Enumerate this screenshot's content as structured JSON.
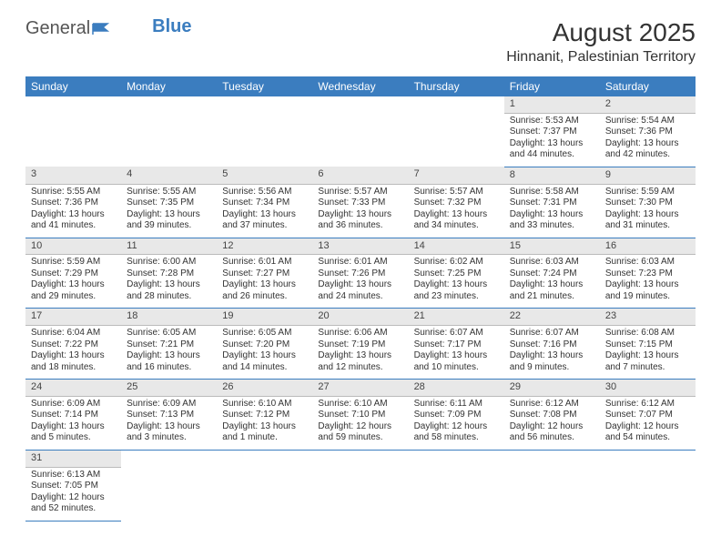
{
  "brand": {
    "part1": "General",
    "part2": "Blue"
  },
  "title": "August 2025",
  "location": "Hinnanit, Palestinian Territory",
  "colors": {
    "header_bg": "#3b7dbf",
    "header_text": "#ffffff",
    "daynum_bg": "#e8e8e8",
    "rule": "#3b7dbf",
    "text": "#333333"
  },
  "weekdays": [
    "Sunday",
    "Monday",
    "Tuesday",
    "Wednesday",
    "Thursday",
    "Friday",
    "Saturday"
  ],
  "weeks": [
    [
      null,
      null,
      null,
      null,
      null,
      {
        "n": "1",
        "sr": "Sunrise: 5:53 AM",
        "ss": "Sunset: 7:37 PM",
        "dl": "Daylight: 13 hours and 44 minutes."
      },
      {
        "n": "2",
        "sr": "Sunrise: 5:54 AM",
        "ss": "Sunset: 7:36 PM",
        "dl": "Daylight: 13 hours and 42 minutes."
      }
    ],
    [
      {
        "n": "3",
        "sr": "Sunrise: 5:55 AM",
        "ss": "Sunset: 7:36 PM",
        "dl": "Daylight: 13 hours and 41 minutes."
      },
      {
        "n": "4",
        "sr": "Sunrise: 5:55 AM",
        "ss": "Sunset: 7:35 PM",
        "dl": "Daylight: 13 hours and 39 minutes."
      },
      {
        "n": "5",
        "sr": "Sunrise: 5:56 AM",
        "ss": "Sunset: 7:34 PM",
        "dl": "Daylight: 13 hours and 37 minutes."
      },
      {
        "n": "6",
        "sr": "Sunrise: 5:57 AM",
        "ss": "Sunset: 7:33 PM",
        "dl": "Daylight: 13 hours and 36 minutes."
      },
      {
        "n": "7",
        "sr": "Sunrise: 5:57 AM",
        "ss": "Sunset: 7:32 PM",
        "dl": "Daylight: 13 hours and 34 minutes."
      },
      {
        "n": "8",
        "sr": "Sunrise: 5:58 AM",
        "ss": "Sunset: 7:31 PM",
        "dl": "Daylight: 13 hours and 33 minutes."
      },
      {
        "n": "9",
        "sr": "Sunrise: 5:59 AM",
        "ss": "Sunset: 7:30 PM",
        "dl": "Daylight: 13 hours and 31 minutes."
      }
    ],
    [
      {
        "n": "10",
        "sr": "Sunrise: 5:59 AM",
        "ss": "Sunset: 7:29 PM",
        "dl": "Daylight: 13 hours and 29 minutes."
      },
      {
        "n": "11",
        "sr": "Sunrise: 6:00 AM",
        "ss": "Sunset: 7:28 PM",
        "dl": "Daylight: 13 hours and 28 minutes."
      },
      {
        "n": "12",
        "sr": "Sunrise: 6:01 AM",
        "ss": "Sunset: 7:27 PM",
        "dl": "Daylight: 13 hours and 26 minutes."
      },
      {
        "n": "13",
        "sr": "Sunrise: 6:01 AM",
        "ss": "Sunset: 7:26 PM",
        "dl": "Daylight: 13 hours and 24 minutes."
      },
      {
        "n": "14",
        "sr": "Sunrise: 6:02 AM",
        "ss": "Sunset: 7:25 PM",
        "dl": "Daylight: 13 hours and 23 minutes."
      },
      {
        "n": "15",
        "sr": "Sunrise: 6:03 AM",
        "ss": "Sunset: 7:24 PM",
        "dl": "Daylight: 13 hours and 21 minutes."
      },
      {
        "n": "16",
        "sr": "Sunrise: 6:03 AM",
        "ss": "Sunset: 7:23 PM",
        "dl": "Daylight: 13 hours and 19 minutes."
      }
    ],
    [
      {
        "n": "17",
        "sr": "Sunrise: 6:04 AM",
        "ss": "Sunset: 7:22 PM",
        "dl": "Daylight: 13 hours and 18 minutes."
      },
      {
        "n": "18",
        "sr": "Sunrise: 6:05 AM",
        "ss": "Sunset: 7:21 PM",
        "dl": "Daylight: 13 hours and 16 minutes."
      },
      {
        "n": "19",
        "sr": "Sunrise: 6:05 AM",
        "ss": "Sunset: 7:20 PM",
        "dl": "Daylight: 13 hours and 14 minutes."
      },
      {
        "n": "20",
        "sr": "Sunrise: 6:06 AM",
        "ss": "Sunset: 7:19 PM",
        "dl": "Daylight: 13 hours and 12 minutes."
      },
      {
        "n": "21",
        "sr": "Sunrise: 6:07 AM",
        "ss": "Sunset: 7:17 PM",
        "dl": "Daylight: 13 hours and 10 minutes."
      },
      {
        "n": "22",
        "sr": "Sunrise: 6:07 AM",
        "ss": "Sunset: 7:16 PM",
        "dl": "Daylight: 13 hours and 9 minutes."
      },
      {
        "n": "23",
        "sr": "Sunrise: 6:08 AM",
        "ss": "Sunset: 7:15 PM",
        "dl": "Daylight: 13 hours and 7 minutes."
      }
    ],
    [
      {
        "n": "24",
        "sr": "Sunrise: 6:09 AM",
        "ss": "Sunset: 7:14 PM",
        "dl": "Daylight: 13 hours and 5 minutes."
      },
      {
        "n": "25",
        "sr": "Sunrise: 6:09 AM",
        "ss": "Sunset: 7:13 PM",
        "dl": "Daylight: 13 hours and 3 minutes."
      },
      {
        "n": "26",
        "sr": "Sunrise: 6:10 AM",
        "ss": "Sunset: 7:12 PM",
        "dl": "Daylight: 13 hours and 1 minute."
      },
      {
        "n": "27",
        "sr": "Sunrise: 6:10 AM",
        "ss": "Sunset: 7:10 PM",
        "dl": "Daylight: 12 hours and 59 minutes."
      },
      {
        "n": "28",
        "sr": "Sunrise: 6:11 AM",
        "ss": "Sunset: 7:09 PM",
        "dl": "Daylight: 12 hours and 58 minutes."
      },
      {
        "n": "29",
        "sr": "Sunrise: 6:12 AM",
        "ss": "Sunset: 7:08 PM",
        "dl": "Daylight: 12 hours and 56 minutes."
      },
      {
        "n": "30",
        "sr": "Sunrise: 6:12 AM",
        "ss": "Sunset: 7:07 PM",
        "dl": "Daylight: 12 hours and 54 minutes."
      }
    ],
    [
      {
        "n": "31",
        "sr": "Sunrise: 6:13 AM",
        "ss": "Sunset: 7:05 PM",
        "dl": "Daylight: 12 hours and 52 minutes."
      },
      null,
      null,
      null,
      null,
      null,
      null
    ]
  ]
}
